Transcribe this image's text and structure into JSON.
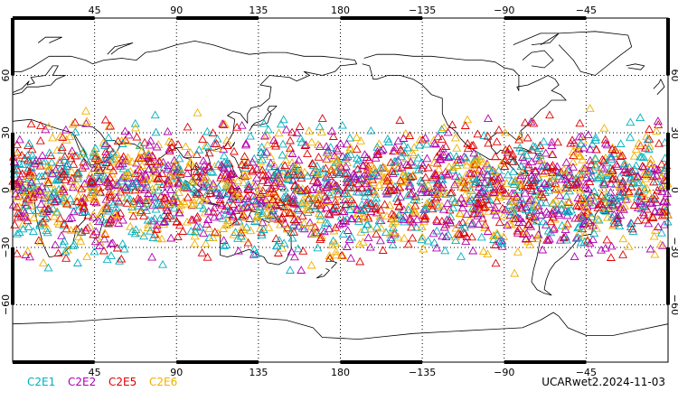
{
  "map": {
    "projection": "cylindrical-equidistant",
    "center_longitude": 180,
    "lon_range": [
      0,
      360
    ],
    "lat_range": [
      -90,
      90
    ],
    "top_ticks": [
      "45",
      "90",
      "135",
      "180",
      "−135",
      "−90",
      "−45"
    ],
    "bottom_ticks": [
      "45",
      "90",
      "135",
      "180",
      "−135",
      "−90",
      "−45"
    ],
    "lat_ticks": [
      "60",
      "30",
      "0",
      "−30",
      "−60"
    ],
    "tick_lons": [
      45,
      90,
      135,
      180,
      225,
      270,
      315
    ],
    "tick_lats": [
      60,
      30,
      0,
      -30,
      -60
    ],
    "marker": "triangle-outline",
    "occultation_lat_band": [
      -45,
      45
    ],
    "coastline_color": "#000000",
    "grid_style": "dotted"
  },
  "legend": [
    {
      "label": "C2E1",
      "color": "#00b0c0"
    },
    {
      "label": "C2E2",
      "color": "#b000b0"
    },
    {
      "label": "C2E5",
      "color": "#e00000"
    },
    {
      "label": "C2E6",
      "color": "#f0b000"
    }
  ],
  "stamp": "UCARwet2.2024-11-03"
}
